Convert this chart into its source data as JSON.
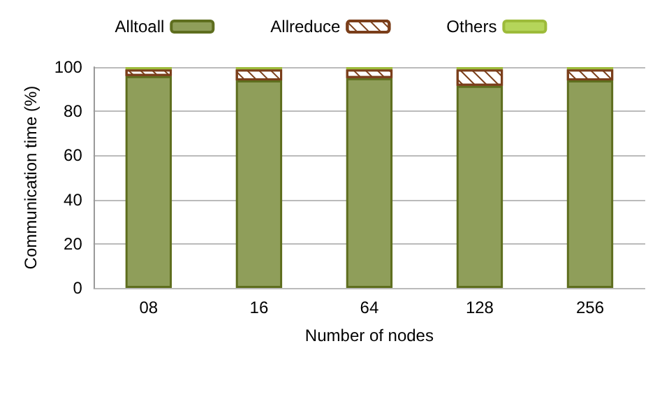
{
  "chart_data": {
    "type": "bar",
    "stacked": true,
    "xlabel": "Number of nodes",
    "ylabel": "Communication time (%)",
    "categories": [
      "08",
      "16",
      "64",
      "128",
      "256"
    ],
    "series": [
      {
        "name": "Alltoall",
        "color": "#8f9e5a",
        "values": [
          96,
          94,
          95,
          91.5,
          94
        ]
      },
      {
        "name": "Allreduce",
        "color": "#ffffff",
        "values": [
          3,
          5,
          4,
          7.5,
          5
        ]
      },
      {
        "name": "Others",
        "color": "#b5d55a",
        "values": [
          1,
          1,
          1,
          1,
          1
        ]
      }
    ],
    "ylim": [
      0,
      100
    ],
    "yticks": [
      0,
      20,
      40,
      60,
      80,
      100
    ],
    "grid": "y",
    "legend": "top"
  }
}
